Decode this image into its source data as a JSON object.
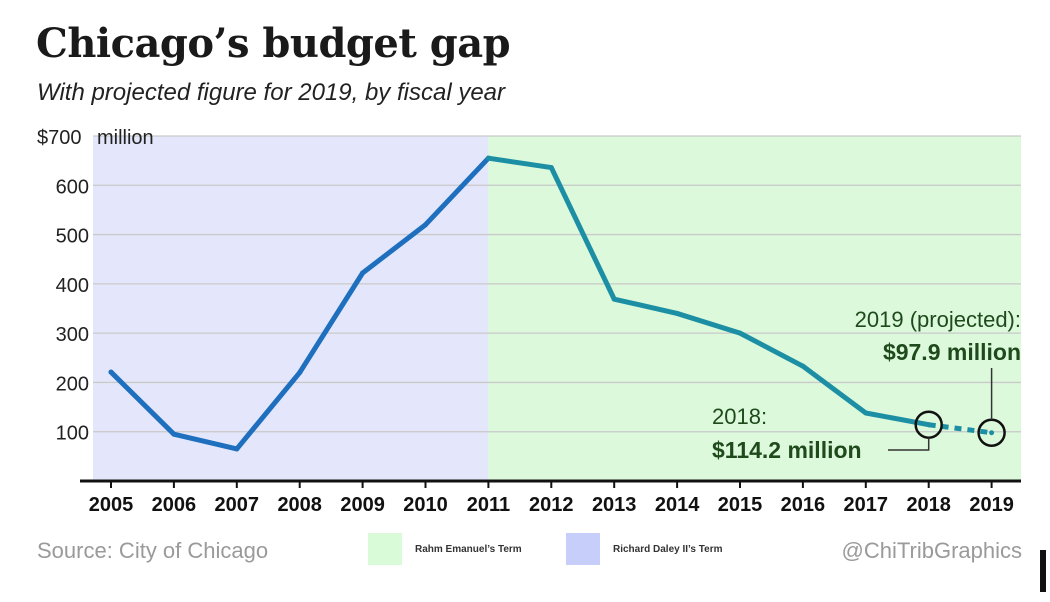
{
  "header": {
    "title": "Chicago’s budget gap",
    "subtitle": "With projected figure for 2019, by fiscal year"
  },
  "footer": {
    "source": "Source: City of Chicago",
    "credit": "@ChiTribGraphics"
  },
  "legend": [
    {
      "label": "Rahm Emanuel’s Term",
      "color": "#d9fbd8"
    },
    {
      "label": "Richard Daley II’s Term",
      "color": "#c7cefa"
    }
  ],
  "annotations": {
    "a2019_line1": "2019 (projected):",
    "a2019_line2": "$97.9 million",
    "a2018_line1": "2018:",
    "a2018_line2": "$114.2 million"
  },
  "colors": {
    "daley_bg": "#e4e7fb",
    "emanuel_bg": "#dcf9db",
    "daley_line": "#1f6fbf",
    "emanuel_line": "#1d8fa5",
    "annotation_text": "#1f4a1c",
    "grid": "#c9c9c9"
  },
  "chart_data": {
    "type": "line",
    "title": "Chicago’s budget gap",
    "subtitle": "With projected figure for 2019, by fiscal year",
    "x": [
      2005,
      2006,
      2007,
      2008,
      2009,
      2010,
      2011,
      2012,
      2013,
      2014,
      2015,
      2016,
      2017,
      2018,
      2019
    ],
    "ylim": [
      0,
      700
    ],
    "yticks": [
      100,
      200,
      300,
      400,
      500,
      600,
      700
    ],
    "ytick_labels": [
      "100",
      "200",
      "300",
      "400",
      "500",
      "600",
      "$700"
    ],
    "yunit": "million",
    "grid": true,
    "series": [
      {
        "values": [
          221,
          95,
          65,
          220,
          422,
          520,
          655,
          636,
          369,
          340,
          300,
          233,
          138,
          114.2,
          97.9
        ]
      }
    ],
    "projected_from": 2018,
    "terms": [
      {
        "name": "Richard Daley II’s Term",
        "from": 2005,
        "to": 2011
      },
      {
        "name": "Rahm Emanuel’s Term",
        "from": 2011,
        "to": 2019
      }
    ]
  }
}
